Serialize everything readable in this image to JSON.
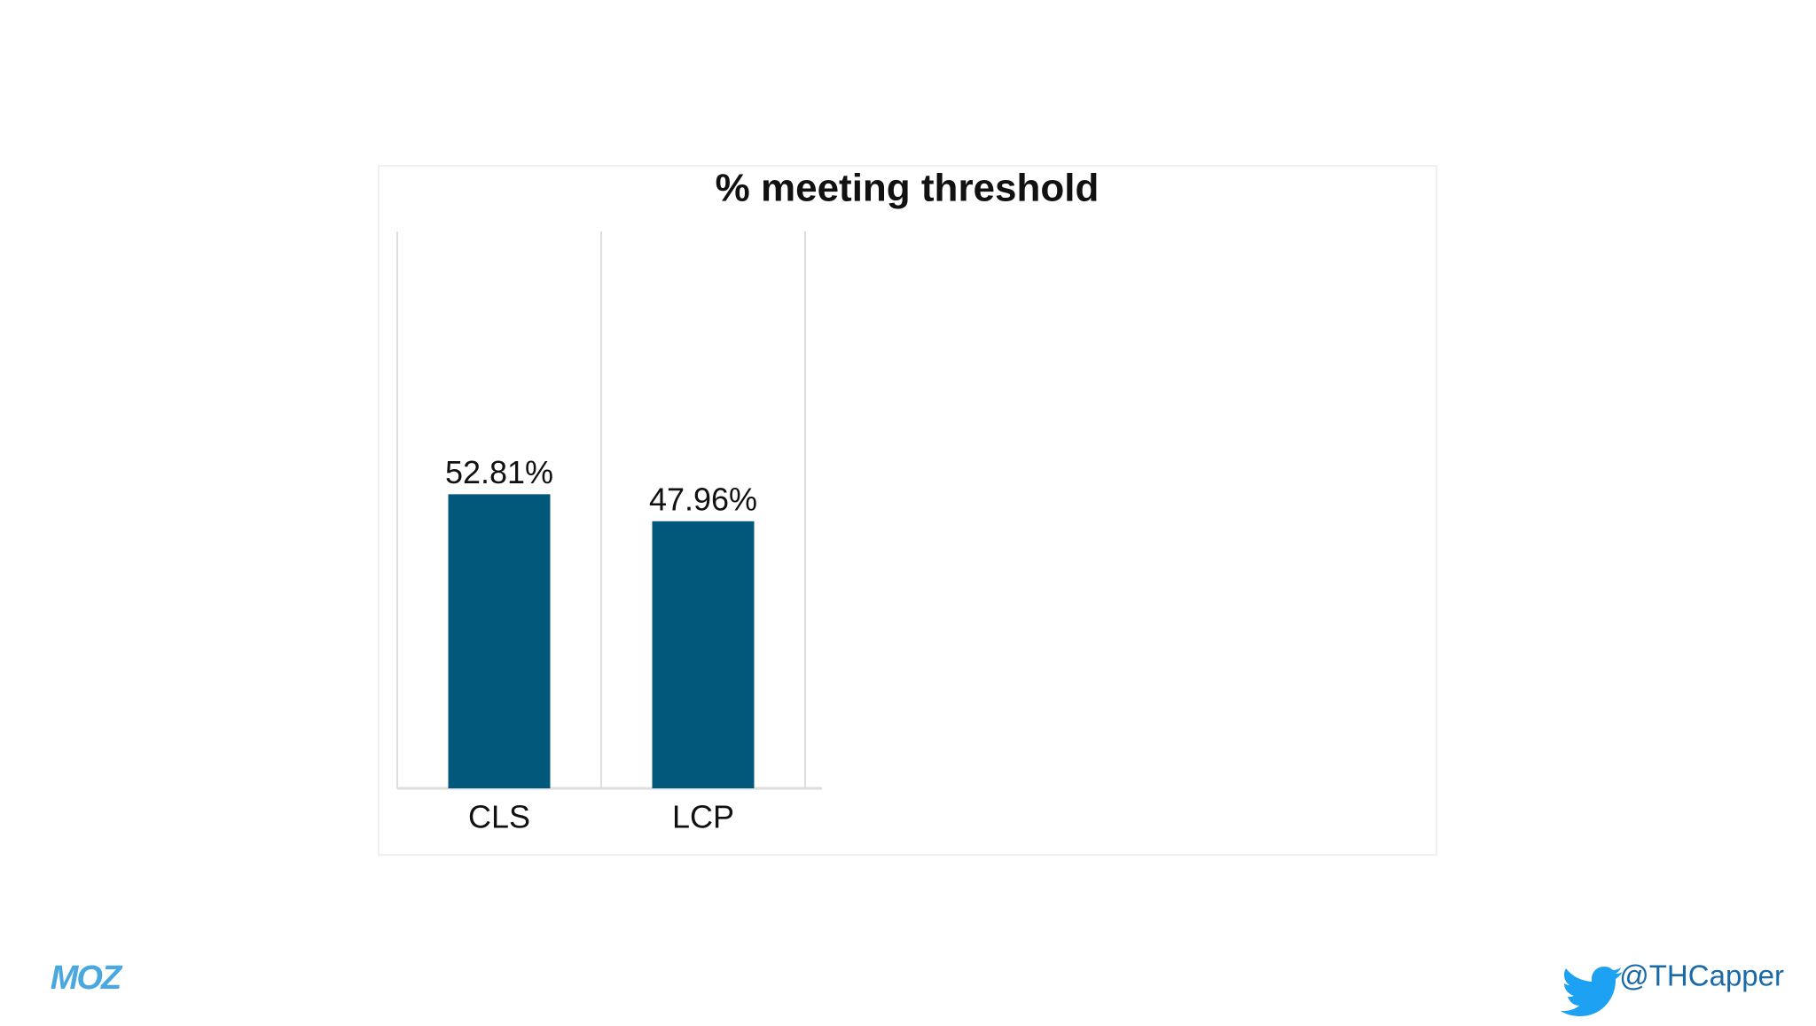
{
  "chart_data": {
    "type": "bar",
    "title": "% meeting threshold",
    "categories": [
      "CLS",
      "LCP"
    ],
    "values": [
      52.81,
      47.96
    ],
    "value_labels": [
      "52.81%",
      "47.96%"
    ],
    "color": "#02587a",
    "ylim": [
      0,
      100
    ]
  },
  "footer": {
    "logo": "MOZ",
    "handle": "@THCapper"
  }
}
